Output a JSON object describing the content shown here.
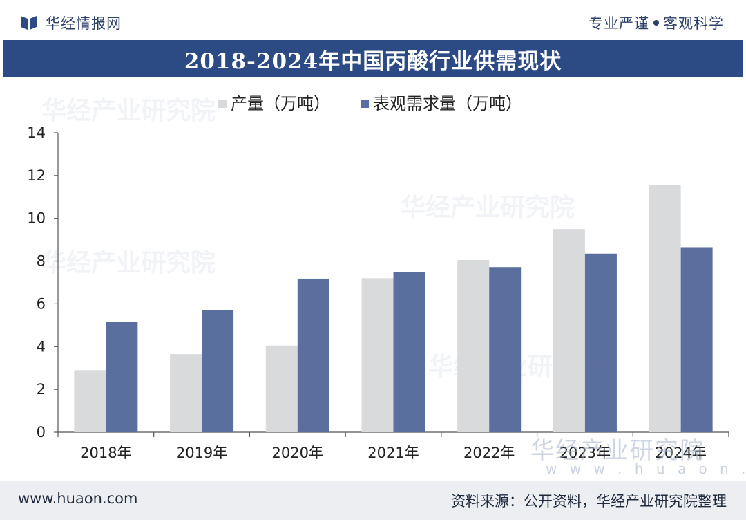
{
  "header": {
    "brand_name": "华经情报网",
    "brand_logo_icon": "bookmark-logo-icon",
    "slogan_left": "专业严谨",
    "slogan_right": "客观科学",
    "title": "2018-2024年中国丙酸行业供需现状"
  },
  "colors": {
    "title_band": "#2c4a84",
    "series_production": "#d9dadc",
    "series_demand": "#5b6f9e",
    "footer_bg": "#eceef2"
  },
  "chart_data": {
    "type": "bar",
    "title": "2018-2024年中国丙酸行业供需现状",
    "categories": [
      "2018年",
      "2019年",
      "2020年",
      "2021年",
      "2022年",
      "2023年",
      "2024年"
    ],
    "series": [
      {
        "name": "产量（万吨）",
        "values": [
          2.9,
          3.65,
          4.05,
          7.2,
          8.05,
          9.5,
          11.55
        ]
      },
      {
        "name": "表观需求量（万吨）",
        "values": [
          5.15,
          5.7,
          7.18,
          7.48,
          7.72,
          8.35,
          8.65
        ]
      }
    ],
    "ylim": [
      0,
      14
    ],
    "yticks": [
      0,
      2,
      4,
      6,
      8,
      10,
      12,
      14
    ],
    "xlabel": "",
    "ylabel": "",
    "legend_position": "top-left",
    "grid": false
  },
  "watermark": {
    "text": "华经产业研究院",
    "url": "w w w . h u a o n . c o m"
  },
  "footer": {
    "website": "www.huaon.com",
    "source": "资料来源：公开资料，华经产业研究院整理"
  }
}
